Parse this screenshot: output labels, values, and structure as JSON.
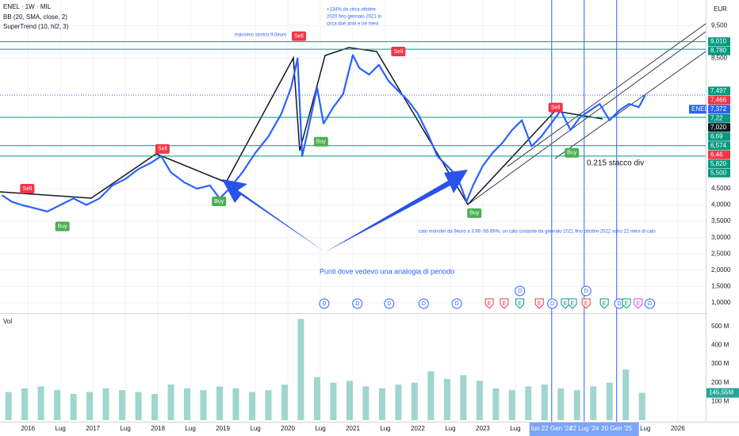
{
  "chart_data": {
    "type": "line",
    "title": "ENEL · 1W · MIL",
    "indicators": [
      "BB (20, SMA, close, 2)",
      "SuperTrend (10, hl2, 3)"
    ],
    "currency": "EUR",
    "annotations": [
      "massimo storico 9.0euro",
      "+134% da circa ottobre",
      "2020 fino gennaio 2021 in",
      "circa due anni e tre mesi",
      "0.215 stacco div",
      "calo monster  da 9euro a 3.99 -55.66%, un calo costante da gennaio 2021 fino ottobre 2022 sono 22 mesi di calo",
      "Punti dove vedevo una analogia di periodo"
    ],
    "grid": true,
    "xlim": [
      2015.57,
      2026.43
    ],
    "xticks": [
      {
        "value": 2016,
        "label": "2016"
      },
      {
        "value": 2016.5,
        "label": "Lug"
      },
      {
        "value": 2017,
        "label": "2017"
      },
      {
        "value": 2017.5,
        "label": "Lug"
      },
      {
        "value": 2018,
        "label": "2018"
      },
      {
        "value": 2018.5,
        "label": "Lug"
      },
      {
        "value": 2019,
        "label": "2019"
      },
      {
        "value": 2019.5,
        "label": "Lug"
      },
      {
        "value": 2020,
        "label": "2020"
      },
      {
        "value": 2020.5,
        "label": "Lug"
      },
      {
        "value": 2021,
        "label": "2021"
      },
      {
        "value": 2021.5,
        "label": "Lug"
      },
      {
        "value": 2022,
        "label": "2022"
      },
      {
        "value": 2022.5,
        "label": "Lug"
      },
      {
        "value": 2023,
        "label": "2023"
      },
      {
        "value": 2023.5,
        "label": "Lug"
      },
      {
        "value": 2025.5,
        "label": "Lug"
      },
      {
        "value": 2026,
        "label": "2026"
      }
    ],
    "x_highlights": [
      {
        "value": 2024.06,
        "label": "lun 22 Gen '24"
      },
      {
        "value": 2024.56,
        "label": "22 Lug '24"
      },
      {
        "value": 2025.06,
        "label": "20 Gen '25"
      }
    ],
    "ylim": [
      0.68,
      10.29
    ],
    "yticks": [
      {
        "value": 9.5,
        "label": "9,500"
      },
      {
        "value": 8.5,
        "label": "8,500"
      },
      {
        "value": 4.5,
        "label": "4,5000"
      },
      {
        "value": 4,
        "label": "4,0000"
      },
      {
        "value": 3.5,
        "label": "3,5000"
      },
      {
        "value": 3,
        "label": "3,0000"
      },
      {
        "value": 2.5,
        "label": "2,5000"
      },
      {
        "value": 2,
        "label": "2,0000"
      },
      {
        "value": 1.5,
        "label": "1,5000"
      },
      {
        "value": 1,
        "label": "1,0000"
      }
    ],
    "price": {
      "color": "#2962ff",
      "x": [
        2015.6,
        2015.75,
        2015.9,
        2016.1,
        2016.3,
        2016.5,
        2016.7,
        2016.9,
        2017.1,
        2017.3,
        2017.5,
        2017.7,
        2017.9,
        2018.05,
        2018.2,
        2018.4,
        2018.6,
        2018.8,
        2018.95,
        2019.1,
        2019.3,
        2019.5,
        2019.7,
        2019.9,
        2020.05,
        2020.15,
        2020.22,
        2020.3,
        2020.45,
        2020.55,
        2020.7,
        2020.85,
        2021.0,
        2021.1,
        2021.25,
        2021.4,
        2021.55,
        2021.7,
        2021.85,
        2022.0,
        2022.15,
        2022.3,
        2022.45,
        2022.6,
        2022.75,
        2022.85,
        2023.0,
        2023.15,
        2023.3,
        2023.45,
        2023.6,
        2023.75,
        2023.9,
        2024.05,
        2024.2,
        2024.35,
        2024.5,
        2024.65,
        2024.8,
        2024.95,
        2025.1,
        2025.25,
        2025.4,
        2025.5
      ],
      "values": [
        4.3,
        4.1,
        4.0,
        3.9,
        3.8,
        4.0,
        4.2,
        4.0,
        4.2,
        4.6,
        4.8,
        5.1,
        5.3,
        5.5,
        5.0,
        4.7,
        4.5,
        4.6,
        4.2,
        4.5,
        5.0,
        5.6,
        6.1,
        6.8,
        7.6,
        8.5,
        5.5,
        6.2,
        7.6,
        6.5,
        7.0,
        7.4,
        8.6,
        8.2,
        8.0,
        8.3,
        7.8,
        7.5,
        7.2,
        6.8,
        6.2,
        5.5,
        5.2,
        4.9,
        4.1,
        4.6,
        5.2,
        5.6,
        5.9,
        6.3,
        6.6,
        5.8,
        6.1,
        6.5,
        6.9,
        6.3,
        6.7,
        6.9,
        7.1,
        6.6,
        6.9,
        7.1,
        7.0,
        7.37
      ]
    },
    "price_labels": [
      {
        "value": 9.01,
        "label": "9,010",
        "color": "#089981",
        "level_line": true
      },
      {
        "value": 8.78,
        "label": "8,780",
        "color": "#089981",
        "level_line": true
      },
      {
        "value": 7.497,
        "label": "7,497",
        "color": "#089981"
      },
      {
        "value": 7.466,
        "label": "7,466",
        "color": "#f23645"
      },
      {
        "value": 7.372,
        "label": "7,372",
        "name": "ENEL",
        "color": "#2962ff"
      },
      {
        "value": 7.22,
        "label": "7,22",
        "color": "#089981"
      },
      {
        "value": 7.02,
        "label": "7,020",
        "color": "#131722"
      },
      {
        "value": 6.69,
        "label": "6,69",
        "color": "#089981",
        "level_line": true
      },
      {
        "value": 6.574,
        "label": "6,574",
        "color": "#089981"
      },
      {
        "value": 6.46,
        "label": "6,46",
        "color": "#f23645"
      },
      {
        "value": 5.82,
        "label": "5,820",
        "color": "#089981",
        "level_line": true
      },
      {
        "value": 5.5,
        "label": "5,500",
        "color": "#089981",
        "level_line": true
      }
    ],
    "signals": [
      {
        "label": "Sell",
        "x": 2015.99,
        "y": 4.5
      },
      {
        "label": "Buy",
        "x": 2016.53,
        "y": 3.34
      },
      {
        "label": "Sell",
        "x": 2018.07,
        "y": 5.72
      },
      {
        "label": "Buy",
        "x": 2018.94,
        "y": 4.11
      },
      {
        "label": "Sell",
        "x": 2020.17,
        "y": 9.18
      },
      {
        "label": "Buy",
        "x": 2020.51,
        "y": 5.94
      },
      {
        "label": "Sell",
        "x": 2021.7,
        "y": 8.71
      },
      {
        "label": "Buy",
        "x": 2022.87,
        "y": 3.75
      },
      {
        "label": "Sell",
        "x": 2024.12,
        "y": 6.99
      },
      {
        "label": "Buy",
        "x": 2024.37,
        "y": 5.6
      }
    ],
    "events": [
      {
        "label": "D",
        "x": 2020.56,
        "color": "#2962ff"
      },
      {
        "label": "D",
        "x": 2021.07,
        "color": "#2962ff"
      },
      {
        "label": "D",
        "x": 2021.56,
        "color": "#2962ff"
      },
      {
        "label": "D",
        "x": 2022.09,
        "color": "#2962ff"
      },
      {
        "label": "D",
        "x": 2022.6,
        "color": "#2962ff"
      },
      {
        "label": "E",
        "x": 2023.1,
        "color": "#f23645"
      },
      {
        "label": "E",
        "x": 2023.33,
        "color": "#f23645"
      },
      {
        "label": "E",
        "x": 2023.57,
        "color": "#089981"
      },
      {
        "label": "D",
        "x": 2023.57,
        "color": "#2962ff"
      },
      {
        "label": "E",
        "x": 2023.87,
        "color": "#f23645"
      },
      {
        "label": "D",
        "x": 2024.07,
        "color": "#2962ff"
      },
      {
        "label": "E",
        "x": 2024.27,
        "color": "#089981"
      },
      {
        "label": "E",
        "x": 2024.38,
        "color": "#089981"
      },
      {
        "label": "E",
        "x": 2024.59,
        "color": "#f23645"
      },
      {
        "label": "D",
        "x": 2024.59,
        "color": "#2962ff"
      },
      {
        "label": "E",
        "x": 2024.87,
        "color": "#089981"
      },
      {
        "label": "D",
        "x": 2025.1,
        "color": "#2962ff"
      },
      {
        "label": "E",
        "x": 2025.21,
        "color": "#089981"
      },
      {
        "label": "E",
        "x": 2025.39,
        "color": "#e040fb"
      },
      {
        "label": "D",
        "x": 2025.57,
        "color": "#2962ff"
      }
    ],
    "volume": {
      "name": "Vol",
      "color": "#9fd6cd",
      "x": [
        2015.7,
        2015.95,
        2016.2,
        2016.45,
        2016.7,
        2016.95,
        2017.2,
        2017.45,
        2017.7,
        2017.95,
        2018.2,
        2018.45,
        2018.7,
        2018.95,
        2019.2,
        2019.45,
        2019.7,
        2019.95,
        2020.2,
        2020.45,
        2020.7,
        2020.95,
        2021.2,
        2021.45,
        2021.7,
        2021.95,
        2022.2,
        2022.45,
        2022.7,
        2022.95,
        2023.2,
        2023.45,
        2023.7,
        2023.95,
        2024.2,
        2024.45,
        2024.7,
        2024.95,
        2025.2,
        2025.45
      ],
      "values": [
        150,
        170,
        180,
        160,
        140,
        150,
        170,
        160,
        150,
        140,
        190,
        170,
        160,
        180,
        170,
        150,
        160,
        190,
        540,
        230,
        200,
        210,
        180,
        170,
        190,
        200,
        260,
        220,
        240,
        210,
        170,
        160,
        180,
        190,
        170,
        160,
        180,
        200,
        270,
        146
      ],
      "ylim": [
        0,
        550
      ],
      "yticks": [
        {
          "value": 100,
          "label": "100 M"
        },
        {
          "value": 200,
          "label": "200 M"
        },
        {
          "value": 300,
          "label": "300 M"
        },
        {
          "value": 400,
          "label": "400 M"
        },
        {
          "value": 500,
          "label": "500 M"
        }
      ],
      "last": {
        "value": 145.55,
        "label": "145,55M"
      }
    }
  }
}
